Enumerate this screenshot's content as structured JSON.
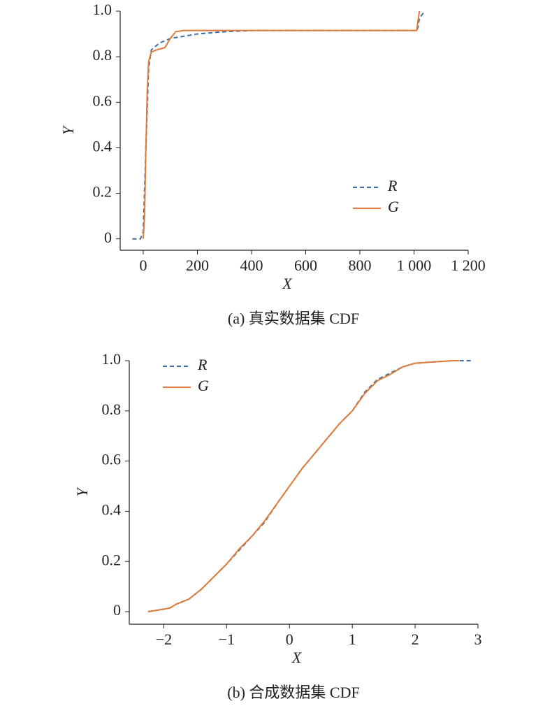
{
  "chart_data": [
    {
      "type": "line",
      "caption": "(a) 真实数据集 CDF",
      "xlabel": "X",
      "ylabel": "Y",
      "xlim": [
        -85,
        1200
      ],
      "ylim": [
        -0.05,
        1.0
      ],
      "xticks": [
        0,
        200,
        400,
        600,
        800,
        {
          "value": 1000,
          "label": "1 000"
        },
        {
          "value": 1200,
          "label": "1 200"
        }
      ],
      "yticks": [
        0,
        0.2,
        0.4,
        0.6,
        0.8,
        {
          "value": 1.0,
          "label": "1.0"
        }
      ],
      "legend": "lower right",
      "series": [
        {
          "name": "R",
          "color": "#3d6fa6",
          "dashed": true,
          "x": [
            -40,
            -10,
            0,
            10,
            20,
            30,
            60,
            100,
            200,
            300,
            400,
            1010,
            1015,
            1020,
            1040
          ],
          "values": [
            0,
            0,
            0.03,
            0.4,
            0.75,
            0.83,
            0.86,
            0.88,
            0.9,
            0.91,
            0.915,
            0.915,
            0.93,
            0.97,
            1.0
          ]
        },
        {
          "name": "G",
          "color": "#e07b39",
          "dashed": false,
          "x": [
            0,
            5,
            10,
            15,
            20,
            30,
            50,
            80,
            100,
            120,
            150,
            1010,
            1015,
            1020
          ],
          "values": [
            0,
            0.1,
            0.4,
            0.65,
            0.78,
            0.82,
            0.83,
            0.84,
            0.88,
            0.91,
            0.915,
            0.915,
            0.96,
            1.0
          ]
        }
      ]
    },
    {
      "type": "line",
      "caption": "(b) 合成数据集 CDF",
      "xlabel": "X",
      "ylabel": "Y",
      "xlim": [
        -2.55,
        3
      ],
      "ylim": [
        -0.05,
        1.0
      ],
      "xticks": [
        {
          "value": -2,
          "label": "−2"
        },
        {
          "value": -1,
          "label": "−1"
        },
        0,
        1,
        2,
        3
      ],
      "yticks": [
        0,
        0.2,
        0.4,
        0.6,
        0.8,
        {
          "value": 1.0,
          "label": "1.0"
        }
      ],
      "legend": "upper left",
      "series": [
        {
          "name": "R",
          "color": "#3d6fa6",
          "dashed": true,
          "x": [
            -2.25,
            -2,
            -1.9,
            -1.8,
            -1.6,
            -1.4,
            -1.2,
            -1,
            -0.8,
            -0.6,
            -0.4,
            -0.2,
            0,
            0.2,
            0.4,
            0.6,
            0.8,
            1,
            1.2,
            1.4,
            1.6,
            1.8,
            2,
            2.3,
            2.6,
            2.9
          ],
          "values": [
            0,
            0.01,
            0.015,
            0.03,
            0.05,
            0.09,
            0.14,
            0.19,
            0.245,
            0.3,
            0.355,
            0.43,
            0.5,
            0.57,
            0.63,
            0.69,
            0.75,
            0.8,
            0.875,
            0.925,
            0.95,
            0.975,
            0.99,
            0.995,
            1.0,
            1.0
          ]
        },
        {
          "name": "G",
          "color": "#e07b39",
          "dashed": false,
          "x": [
            -2.25,
            -2,
            -1.9,
            -1.8,
            -1.6,
            -1.4,
            -1.2,
            -1,
            -0.8,
            -0.6,
            -0.4,
            -0.2,
            0,
            0.2,
            0.4,
            0.6,
            0.8,
            1,
            1.2,
            1.4,
            1.6,
            1.8,
            2,
            2.3,
            2.6,
            2.7
          ],
          "values": [
            0,
            0.01,
            0.015,
            0.03,
            0.05,
            0.09,
            0.14,
            0.19,
            0.25,
            0.3,
            0.36,
            0.43,
            0.5,
            0.57,
            0.63,
            0.69,
            0.75,
            0.8,
            0.87,
            0.92,
            0.945,
            0.975,
            0.99,
            0.995,
            1.0,
            1.0
          ]
        }
      ]
    }
  ]
}
